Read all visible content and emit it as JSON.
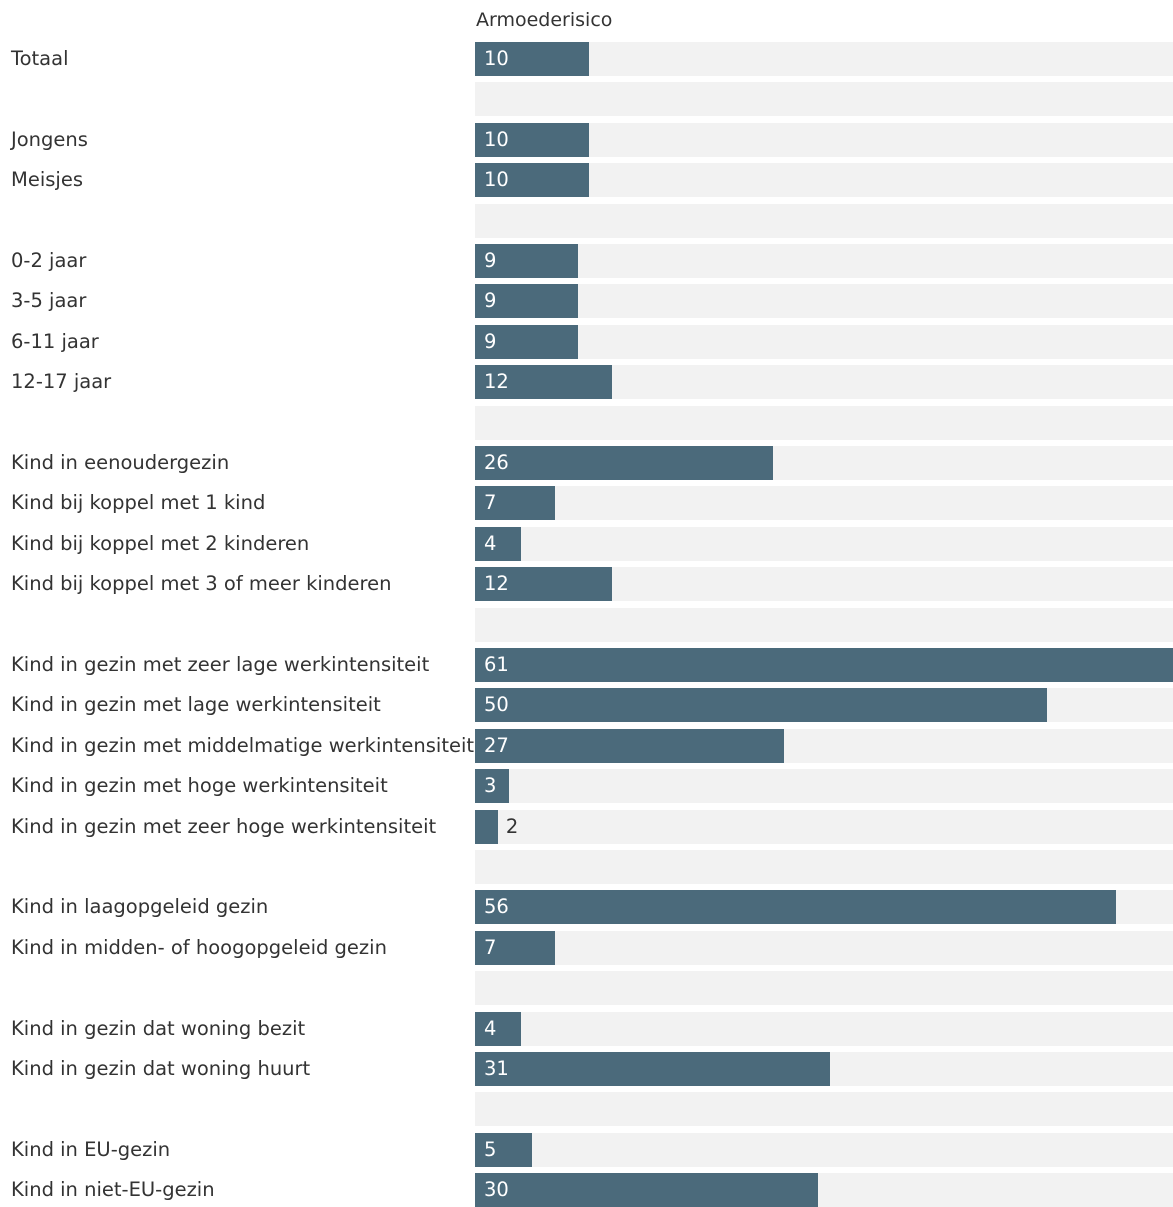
{
  "chart_data": {
    "type": "bar",
    "orientation": "horizontal",
    "column_header": "Armoederisico",
    "grid": false,
    "legend": "none",
    "xlim": [
      0,
      61
    ],
    "rows": [
      {
        "label": "Totaal",
        "value": 10
      },
      {
        "label": "",
        "value": null
      },
      {
        "label": "Jongens",
        "value": 10
      },
      {
        "label": "Meisjes",
        "value": 10
      },
      {
        "label": "",
        "value": null
      },
      {
        "label": "0-2 jaar",
        "value": 9
      },
      {
        "label": "3-5 jaar",
        "value": 9
      },
      {
        "label": "6-11 jaar",
        "value": 9
      },
      {
        "label": "12-17 jaar",
        "value": 12
      },
      {
        "label": "",
        "value": null
      },
      {
        "label": "Kind in eenoudergezin",
        "value": 26
      },
      {
        "label": "Kind bij koppel met 1 kind",
        "value": 7
      },
      {
        "label": "Kind bij koppel met 2 kinderen",
        "value": 4
      },
      {
        "label": "Kind bij koppel met 3 of meer kinderen",
        "value": 12
      },
      {
        "label": "",
        "value": null
      },
      {
        "label": "Kind in gezin met zeer lage werkintensiteit",
        "value": 61
      },
      {
        "label": "Kind in gezin met lage werkintensiteit",
        "value": 50
      },
      {
        "label": "Kind in gezin met middelmatige werkintensiteit",
        "value": 27
      },
      {
        "label": "Kind in gezin met hoge werkintensiteit",
        "value": 3
      },
      {
        "label": "Kind in gezin met zeer hoge werkintensiteit",
        "value": 2
      },
      {
        "label": "",
        "value": null
      },
      {
        "label": "Kind in laagopgeleid gezin",
        "value": 56
      },
      {
        "label": "Kind in midden- of hoogopgeleid gezin",
        "value": 7
      },
      {
        "label": "",
        "value": null
      },
      {
        "label": "Kind in gezin dat woning bezit",
        "value": 4
      },
      {
        "label": "Kind in gezin dat woning huurt",
        "value": 31
      },
      {
        "label": "",
        "value": null
      },
      {
        "label": "Kind in EU-gezin",
        "value": 5
      },
      {
        "label": "Kind in niet-EU-gezin",
        "value": 30
      }
    ],
    "colors": {
      "bar": "#4b6a7b",
      "track": "#f2f2f2",
      "value_inside": "#ffffff",
      "value_outside": "#333333"
    }
  }
}
